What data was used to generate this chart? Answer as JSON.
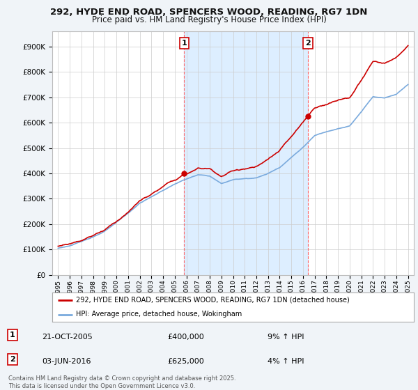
{
  "title_line1": "292, HYDE END ROAD, SPENCERS WOOD, READING, RG7 1DN",
  "title_line2": "Price paid vs. HM Land Registry's House Price Index (HPI)",
  "legend_line1": "292, HYDE END ROAD, SPENCERS WOOD, READING, RG7 1DN (detached house)",
  "legend_line2": "HPI: Average price, detached house, Wokingham",
  "annotation1_label": "1",
  "annotation1_date": "21-OCT-2005",
  "annotation1_price": "£400,000",
  "annotation1_hpi": "9% ↑ HPI",
  "annotation2_label": "2",
  "annotation2_date": "03-JUN-2016",
  "annotation2_price": "£625,000",
  "annotation2_hpi": "4% ↑ HPI",
  "sale1_x": 2005.8,
  "sale1_y": 400000,
  "sale2_x": 2016.42,
  "sale2_y": 625000,
  "vline1_x": 2005.8,
  "vline2_x": 2016.42,
  "ylim_min": 0,
  "ylim_max": 960000,
  "xlim_min": 1994.5,
  "xlim_max": 2025.5,
  "yticks": [
    0,
    100000,
    200000,
    300000,
    400000,
    500000,
    600000,
    700000,
    800000,
    900000
  ],
  "footer_text": "Contains HM Land Registry data © Crown copyright and database right 2025.\nThis data is licensed under the Open Government Licence v3.0.",
  "background_color": "#f0f4f8",
  "plot_bg_color": "#ffffff",
  "grid_color": "#cccccc",
  "red_color": "#cc0000",
  "blue_color": "#7aaadd",
  "fill_color": "#ddeeff"
}
